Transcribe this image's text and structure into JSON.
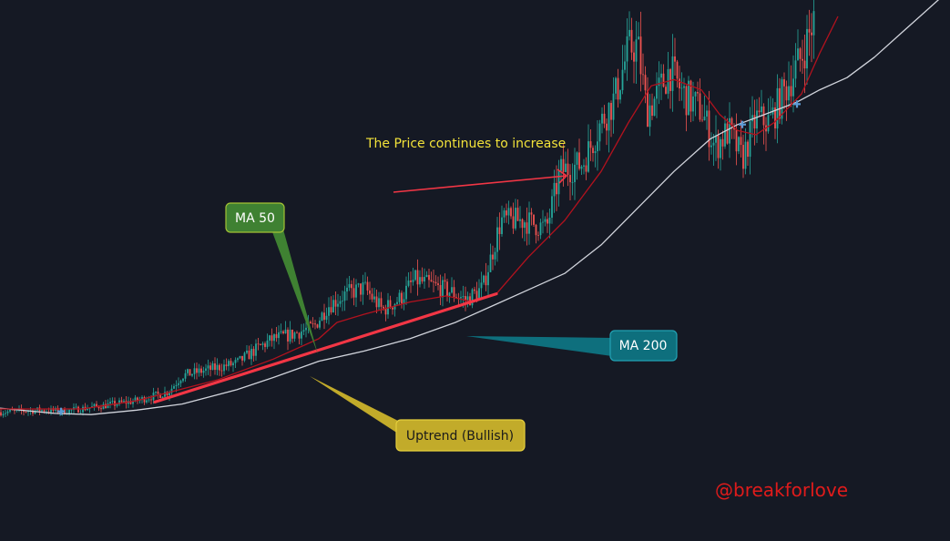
{
  "colors": {
    "background": "#151924",
    "candle_up": "#26a69a",
    "candle_down": "#ef5350",
    "ma50": "#b2121e",
    "ma200": "#d1d4dc",
    "trendline": "#f23645",
    "arrow": "#f23645",
    "cross_marker": "#5b9bd5",
    "ma50_label_bg": "#3f8132",
    "ma50_label_border": "#a3c234",
    "ma200_label_bg": "#0e6f7d",
    "ma200_label_border": "#22a2b4",
    "uptrend_label_bg": "#c2ab2a",
    "uptrend_label_border": "#e5cf3c",
    "note_text": "#f2e23a",
    "watermark": "#e01b1b"
  },
  "annotations": {
    "ma50_label": "MA 50",
    "ma200_label": "MA 200",
    "uptrend_label": "Uptrend (Bullish)",
    "price_note": "The Price continues to increase",
    "watermark": "@breakforlove"
  },
  "chart_data": {
    "type": "candlestick",
    "title": "",
    "xlabel": "",
    "ylabel": "",
    "axes_visible": false,
    "grid": false,
    "ylim": [
      0,
      100
    ],
    "price_path": [
      [
        0,
        3
      ],
      [
        45,
        3.5
      ],
      [
        70,
        3.2
      ],
      [
        110,
        4.5
      ],
      [
        150,
        5.8
      ],
      [
        185,
        8
      ],
      [
        200,
        12
      ],
      [
        230,
        13.5
      ],
      [
        260,
        15
      ],
      [
        285,
        19
      ],
      [
        300,
        21
      ],
      [
        320,
        22
      ],
      [
        345,
        24
      ],
      [
        360,
        29
      ],
      [
        380,
        32
      ],
      [
        400,
        33.5
      ],
      [
        420,
        28
      ],
      [
        440,
        31
      ],
      [
        455,
        35.5
      ],
      [
        475,
        34
      ],
      [
        495,
        32.5
      ],
      [
        512,
        30.5
      ],
      [
        530,
        33.5
      ],
      [
        550,
        50
      ],
      [
        575,
        50
      ],
      [
        600,
        48
      ],
      [
        615,
        62
      ],
      [
        640,
        64
      ],
      [
        660,
        74
      ],
      [
        675,
        80
      ],
      [
        690,
        92
      ],
      [
        700,
        93
      ],
      [
        710,
        77
      ],
      [
        720,
        80
      ],
      [
        735,
        87
      ],
      [
        750,
        81
      ],
      [
        770,
        77
      ],
      [
        785,
        68
      ],
      [
        800,
        72
      ],
      [
        815,
        65
      ],
      [
        830,
        75
      ],
      [
        845,
        74
      ],
      [
        862,
        82
      ],
      [
        880,
        90
      ],
      [
        895,
        100
      ]
    ],
    "ma50_path": [
      [
        0,
        3.8
      ],
      [
        90,
        3.8
      ],
      [
        150,
        5.8
      ],
      [
        240,
        11
      ],
      [
        300,
        16
      ],
      [
        350,
        21
      ],
      [
        370,
        25
      ],
      [
        400,
        27
      ],
      [
        450,
        30
      ],
      [
        490,
        31.5
      ],
      [
        520,
        30
      ],
      [
        545,
        32
      ],
      [
        580,
        41
      ],
      [
        620,
        50
      ],
      [
        660,
        62
      ],
      [
        690,
        74
      ],
      [
        715,
        83
      ],
      [
        740,
        84.5
      ],
      [
        770,
        82
      ],
      [
        790,
        76
      ],
      [
        810,
        72
      ],
      [
        830,
        71
      ],
      [
        850,
        74
      ],
      [
        880,
        81
      ],
      [
        900,
        91
      ],
      [
        920,
        100
      ]
    ],
    "ma200_path": [
      [
        0,
        4
      ],
      [
        60,
        2.7
      ],
      [
        100,
        2.4
      ],
      [
        150,
        3.5
      ],
      [
        200,
        5
      ],
      [
        260,
        8.5
      ],
      [
        300,
        11.5
      ],
      [
        350,
        15.5
      ],
      [
        400,
        18
      ],
      [
        450,
        21
      ],
      [
        500,
        25
      ],
      [
        540,
        29
      ],
      [
        580,
        33
      ],
      [
        620,
        37
      ],
      [
        660,
        44
      ],
      [
        700,
        53
      ],
      [
        740,
        62
      ],
      [
        780,
        70
      ],
      [
        810,
        73.5
      ],
      [
        840,
        76
      ],
      [
        875,
        79
      ],
      [
        900,
        82
      ],
      [
        930,
        85
      ],
      [
        960,
        90
      ],
      [
        990,
        96
      ],
      [
        1040,
        106
      ]
    ],
    "trendline": {
      "from": [
        170,
        5.5
      ],
      "to": [
        545,
        32
      ]
    },
    "golden_cross_markers": [
      [
        67,
        3.2
      ],
      [
        815,
        73.5
      ],
      [
        875,
        78.5
      ]
    ]
  }
}
